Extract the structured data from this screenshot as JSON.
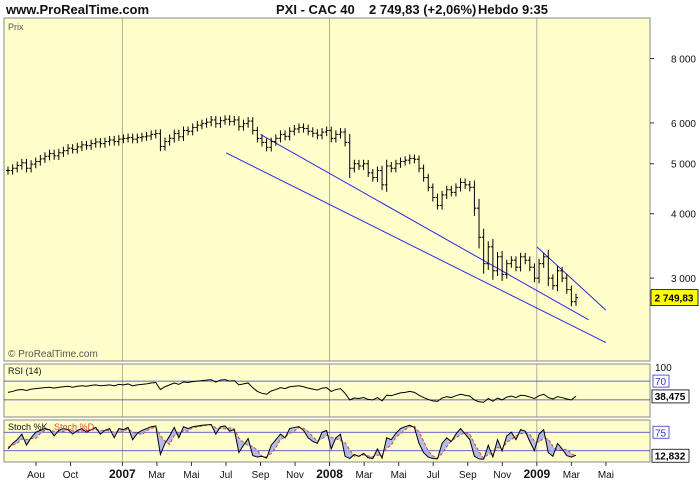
{
  "header": {
    "site": "www.ProRealTime.com",
    "instrument": "PXI - CAC 40",
    "quote": "2 749,83 (+2,06%)",
    "period": "Hebdo",
    "time": "9:35"
  },
  "colors": {
    "background": "#ffffcc",
    "price_bars": "#000000",
    "trendlines": "#2a2adf",
    "rsi_line": "#000000",
    "stoch_k": "#000000",
    "stoch_d": "#d04a3a",
    "stoch_fill": "#9aa4f0",
    "level_lines": "#3333cc"
  },
  "chart_data": [
    {
      "type": "ohlc",
      "title": "Prix",
      "scale": "log",
      "ylim": [
        2100,
        9500
      ],
      "y_ticks": [
        8000,
        6000,
        5000,
        4000,
        3000
      ],
      "y_tick_labels": [
        "8 000",
        "6 000",
        "5 000",
        "4 000",
        "3 000"
      ],
      "last_value_label": "2 749,83",
      "last_value": 2749.83,
      "watermark": "© ProRealTime.com",
      "x_labels": [
        "Aou",
        "Oct",
        "2007",
        "Mar",
        "Mai",
        "Jul",
        "Sep",
        "Nov",
        "2008",
        "Mar",
        "Mai",
        "Jul",
        "Sep",
        "Nov",
        "2009",
        "Mar",
        "Mai"
      ],
      "weekly_close": [
        4850,
        4900,
        4960,
        5020,
        4900,
        4990,
        5050,
        5110,
        5170,
        5230,
        5180,
        5250,
        5300,
        5360,
        5330,
        5390,
        5440,
        5420,
        5470,
        5510,
        5470,
        5520,
        5560,
        5520,
        5580,
        5600,
        5620,
        5580,
        5620,
        5640,
        5660,
        5700,
        5720,
        5400,
        5520,
        5600,
        5720,
        5640,
        5800,
        5780,
        5880,
        5940,
        5980,
        6020,
        6080,
        5980,
        6060,
        6100,
        6040,
        6080,
        5900,
        5980,
        6050,
        5800,
        5600,
        5500,
        5380,
        5520,
        5600,
        5700,
        5650,
        5780,
        5840,
        5880,
        5850,
        5780,
        5730,
        5680,
        5760,
        5800,
        5600,
        5700,
        5760,
        5500,
        4900,
        5000,
        4950,
        5000,
        4800,
        4700,
        4850,
        4550,
        4950,
        4900,
        5000,
        5050,
        5080,
        5120,
        5100,
        4900,
        4700,
        4500,
        4300,
        4150,
        4350,
        4450,
        4400,
        4500,
        4600,
        4550,
        4500,
        4100,
        3600,
        3200,
        3450,
        3100,
        3300,
        3050,
        3200,
        3250,
        3150,
        3300,
        3250,
        3150,
        3000,
        3200,
        3300,
        3000,
        2900,
        3100,
        3000,
        2850,
        2700,
        2750
      ],
      "lines": [
        {
          "from": [
            "2007-07",
            5250
          ],
          "to": [
            "2009-05",
            2250
          ]
        },
        {
          "from": [
            "2007-09",
            5700
          ],
          "to": [
            "2009-04",
            2490
          ]
        },
        {
          "from": [
            "2009-01",
            3450
          ],
          "to": [
            "2009-05",
            2600
          ]
        }
      ]
    },
    {
      "type": "line",
      "title": "RSI (14)",
      "ylim": [
        0,
        100
      ],
      "levels": [
        30,
        70
      ],
      "y_tick_labels": [
        "100",
        "70"
      ],
      "last_value_label": "38,475",
      "last_value": 38.475,
      "values": [
        46,
        48,
        51,
        52,
        50,
        53,
        54,
        55,
        56,
        57,
        55,
        57,
        58,
        59,
        57,
        59,
        60,
        59,
        61,
        62,
        60,
        61,
        62,
        60,
        63,
        62,
        64,
        60,
        62,
        63,
        64,
        66,
        67,
        52,
        58,
        62,
        66,
        63,
        68,
        67,
        69,
        70,
        71,
        72,
        73,
        68,
        72,
        73,
        70,
        71,
        62,
        64,
        66,
        56,
        48,
        44,
        42,
        49,
        52,
        56,
        54,
        58,
        59,
        60,
        58,
        55,
        53,
        51,
        55,
        56,
        48,
        52,
        54,
        44,
        30,
        34,
        33,
        35,
        31,
        30,
        35,
        28,
        40,
        39,
        42,
        45,
        46,
        48,
        46,
        40,
        35,
        31,
        28,
        27,
        34,
        37,
        35,
        39,
        42,
        40,
        38,
        30,
        26,
        25,
        33,
        27,
        34,
        30,
        36,
        38,
        35,
        40,
        39,
        36,
        33,
        39,
        42,
        35,
        32,
        37,
        35,
        32,
        30,
        38
      ]
    },
    {
      "type": "line",
      "title": "Stoch %K",
      "title_d": "Stoch %D",
      "ylim": [
        0,
        100
      ],
      "levels": [
        25,
        75
      ],
      "y_tick_labels": [
        "75"
      ],
      "last_value_label": "12,832",
      "last_value": 12.832,
      "k_values": [
        30,
        45,
        55,
        70,
        40,
        60,
        75,
        80,
        85,
        82,
        65,
        80,
        85,
        82,
        70,
        80,
        85,
        75,
        82,
        88,
        70,
        80,
        85,
        60,
        85,
        82,
        88,
        55,
        72,
        80,
        85,
        90,
        92,
        15,
        45,
        65,
        88,
        60,
        90,
        85,
        90,
        92,
        94,
        95,
        96,
        70,
        90,
        92,
        78,
        82,
        20,
        40,
        58,
        12,
        8,
        10,
        5,
        40,
        55,
        70,
        60,
        85,
        88,
        90,
        80,
        60,
        50,
        45,
        75,
        80,
        30,
        60,
        70,
        10,
        4,
        15,
        10,
        18,
        6,
        4,
        30,
        5,
        60,
        55,
        72,
        85,
        90,
        94,
        88,
        45,
        20,
        8,
        4,
        3,
        45,
        60,
        50,
        70,
        85,
        70,
        55,
        10,
        3,
        2,
        40,
        8,
        55,
        25,
        65,
        75,
        55,
        82,
        78,
        50,
        25,
        70,
        82,
        20,
        10,
        45,
        30,
        12,
        8,
        13
      ],
      "d_values": [
        35,
        40,
        45,
        57,
        55,
        58,
        58,
        72,
        80,
        82,
        77,
        76,
        77,
        82,
        79,
        77,
        78,
        80,
        81,
        82,
        80,
        80,
        78,
        75,
        77,
        76,
        85,
        75,
        72,
        69,
        79,
        85,
        89,
        66,
        51,
        42,
        66,
        71,
        79,
        78,
        88,
        89,
        92,
        94,
        95,
        87,
        85,
        84,
        87,
        84,
        60,
        47,
        39,
        37,
        26,
        10,
        8,
        18,
        33,
        55,
        62,
        72,
        78,
        88,
        86,
        77,
        63,
        52,
        57,
        67,
        62,
        57,
        53,
        47,
        28,
        10,
        10,
        14,
        11,
        9,
        13,
        13,
        32,
        40,
        62,
        71,
        82,
        90,
        91,
        76,
        51,
        24,
        11,
        5,
        17,
        36,
        52,
        60,
        68,
        75,
        70,
        45,
        23,
        5,
        15,
        17,
        34,
        29,
        48,
        55,
        65,
        71,
        72,
        70,
        51,
        48,
        59,
        57,
        37,
        25,
        28,
        29,
        17,
        11
      ]
    }
  ]
}
